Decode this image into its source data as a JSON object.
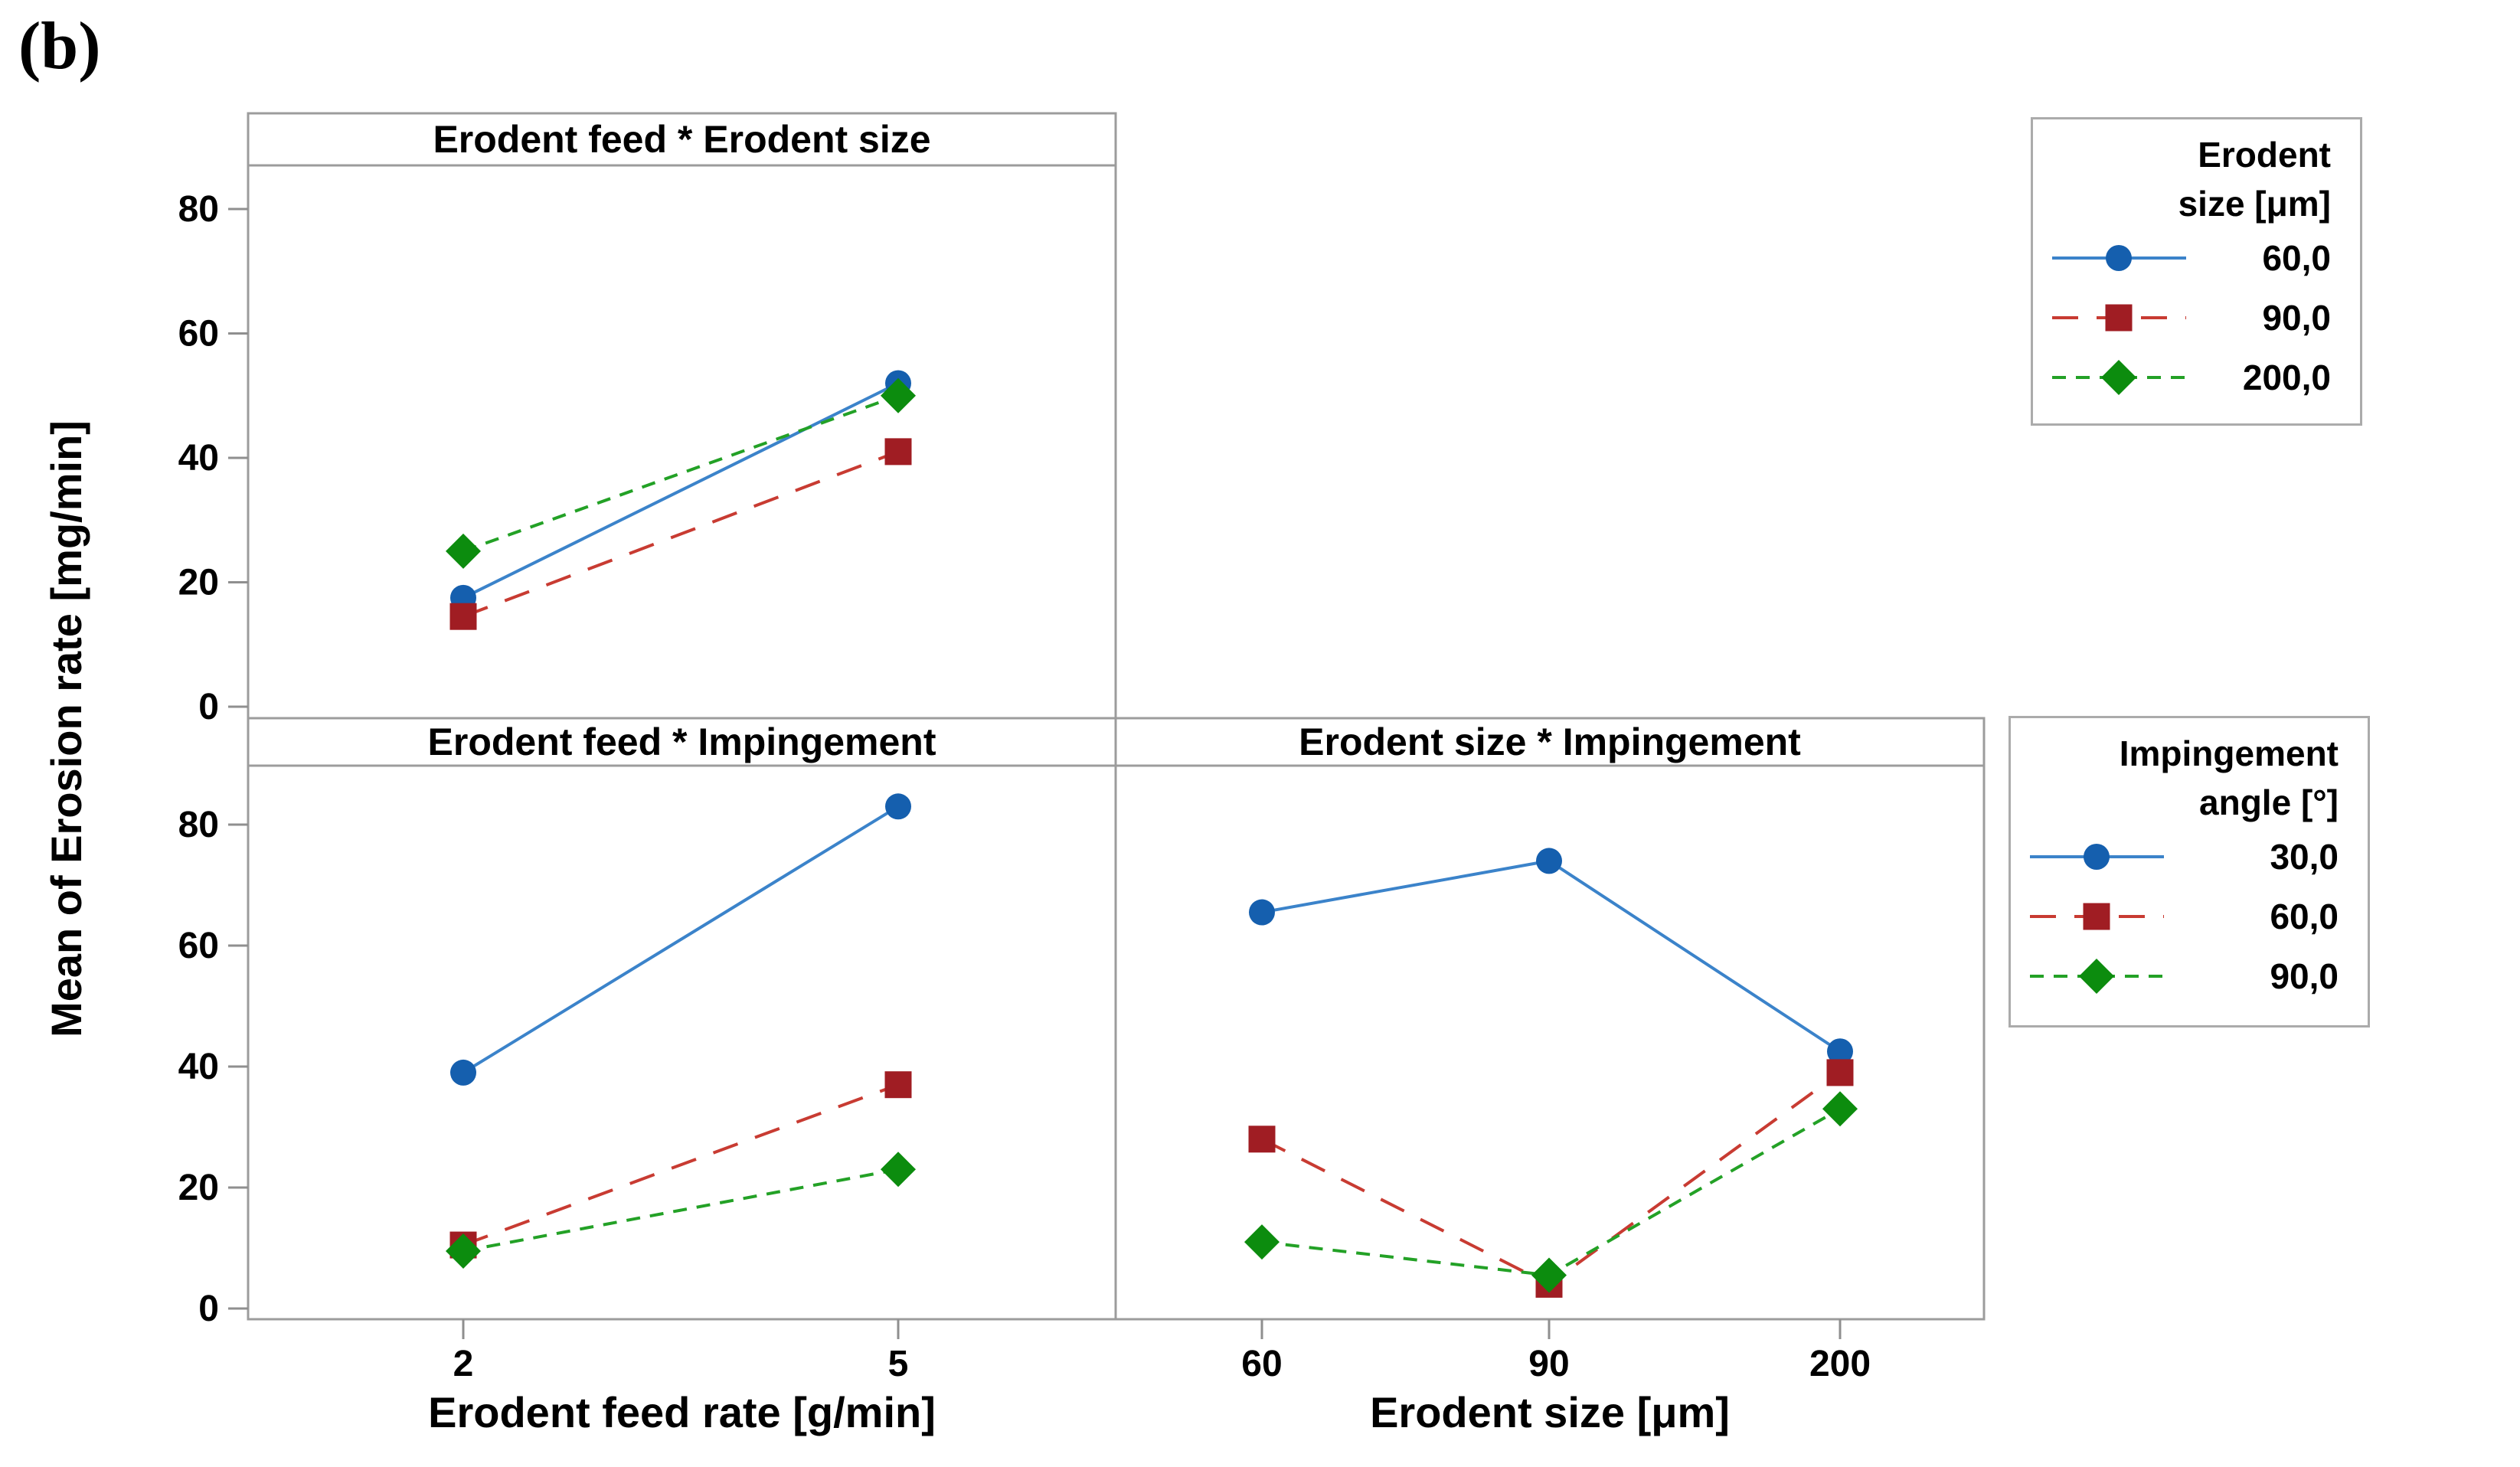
{
  "figure_label": "(b)",
  "y_axis_title": "Mean of Erosion rate [mg/min]",
  "colors": {
    "panel_border": "#9c9c9c",
    "tick": "#8f8f8f",
    "text": "#000000",
    "background": "#ffffff"
  },
  "series_styles": [
    {
      "id": "s1",
      "marker": "circle",
      "line": "solid",
      "line_color": "#3b83ca",
      "marker_color": "#155fae"
    },
    {
      "id": "s2",
      "marker": "square",
      "line": "long-dash",
      "line_color": "#c83b32",
      "marker_color": "#a01d23"
    },
    {
      "id": "s3",
      "marker": "diamond",
      "line": "short-dash",
      "line_color": "#23a126",
      "marker_color": "#0c8c0e"
    }
  ],
  "chart_data": {
    "type": "line",
    "grid": false,
    "y_ticks": [
      0,
      20,
      40,
      60,
      80
    ],
    "ylim_row1": [
      0,
      87
    ],
    "ylim_row2": [
      0,
      90
    ],
    "panels": [
      {
        "id": "feed-size",
        "title": "Erodent feed * Erodent size",
        "row": 0,
        "col": 0,
        "x_tick_labels": [
          "2",
          "5"
        ],
        "x_axis_label": null,
        "series": [
          {
            "legend": "60,0",
            "style": "s1",
            "values": [
              17.5,
              52
            ]
          },
          {
            "legend": "90,0",
            "style": "s2",
            "values": [
              14.5,
              41
            ]
          },
          {
            "legend": "200,0",
            "style": "s3",
            "values": [
              25,
              50
            ]
          }
        ]
      },
      {
        "id": "feed-impingement",
        "title": "Erodent feed * Impingement",
        "row": 1,
        "col": 0,
        "x_tick_labels": [
          "2",
          "5"
        ],
        "x_axis_label": "Erodent feed rate [g/min]",
        "series": [
          {
            "legend": "30,0",
            "style": "s1",
            "values": [
              39,
              83
            ]
          },
          {
            "legend": "60,0",
            "style": "s2",
            "values": [
              10.5,
              37
            ]
          },
          {
            "legend": "90,0",
            "style": "s3",
            "values": [
              9.5,
              23
            ]
          }
        ]
      },
      {
        "id": "size-impingement",
        "title": "Erodent size * Impingement",
        "row": 1,
        "col": 1,
        "x_tick_labels": [
          "60",
          "90",
          "200"
        ],
        "x_axis_label": "Erodent size [μm]",
        "series": [
          {
            "legend": "30,0",
            "style": "s1",
            "values": [
              65.5,
              74,
              42.5
            ]
          },
          {
            "legend": "60,0",
            "style": "s2",
            "values": [
              28,
              4,
              39
            ]
          },
          {
            "legend": "90,0",
            "style": "s3",
            "values": [
              11,
              5.5,
              33
            ]
          }
        ]
      }
    ]
  },
  "legends": [
    {
      "id": "erodent-size",
      "title_lines": [
        "Erodent",
        "size [μm]"
      ],
      "entries": [
        {
          "label": "60,0",
          "style": "s1"
        },
        {
          "label": "90,0",
          "style": "s2"
        },
        {
          "label": "200,0",
          "style": "s3"
        }
      ]
    },
    {
      "id": "impingement-angle",
      "title_lines": [
        "Impingement",
        "angle [°]"
      ],
      "entries": [
        {
          "label": "30,0",
          "style": "s1"
        },
        {
          "label": "60,0",
          "style": "s2"
        },
        {
          "label": "90,0",
          "style": "s3"
        }
      ]
    }
  ]
}
